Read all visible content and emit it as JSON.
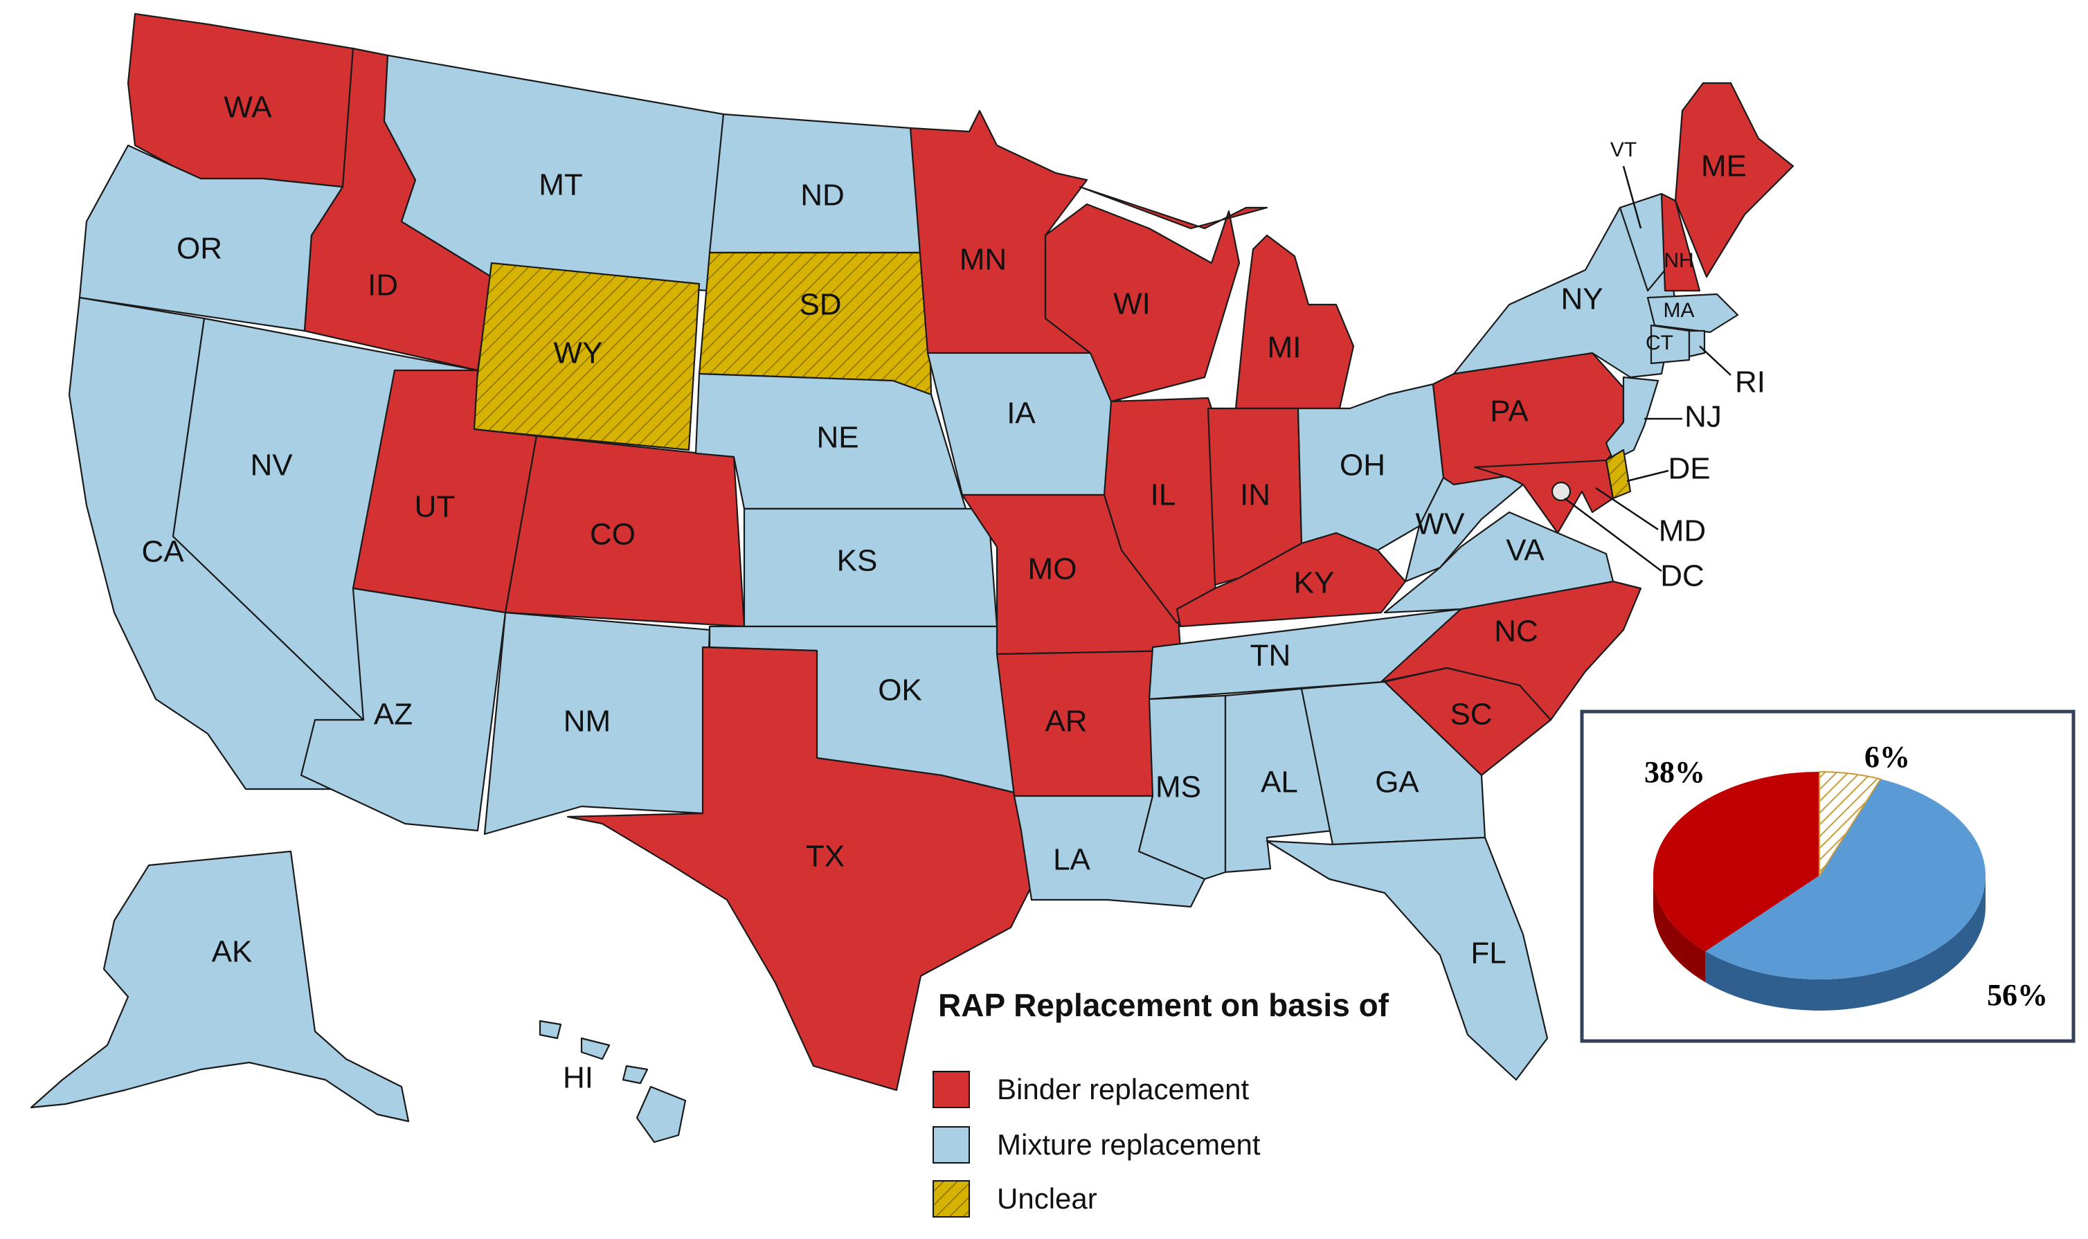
{
  "colors": {
    "binder": "#d43232",
    "mixture": "#a8cfe4",
    "unclear": "#d6b300",
    "pie_binder": "#c00000",
    "pie_mixture": "#5b9bd5",
    "pie_unclear": "#c99a3a"
  },
  "legend": {
    "title": "RAP Replacement on basis of",
    "items": [
      {
        "key": "binder",
        "label": "Binder replacement"
      },
      {
        "key": "mixture",
        "label": "Mixture replacement"
      },
      {
        "key": "unclear",
        "label": "Unclear"
      }
    ]
  },
  "states": [
    {
      "code": "WA",
      "label": "WA",
      "category": "binder"
    },
    {
      "code": "OR",
      "label": "OR",
      "category": "mixture"
    },
    {
      "code": "CA",
      "label": "CA",
      "category": "mixture"
    },
    {
      "code": "ID",
      "label": "ID",
      "category": "binder"
    },
    {
      "code": "NV",
      "label": "NV",
      "category": "mixture"
    },
    {
      "code": "MT",
      "label": "MT",
      "category": "mixture"
    },
    {
      "code": "WY",
      "label": "WY",
      "category": "unclear"
    },
    {
      "code": "UT",
      "label": "UT",
      "category": "binder"
    },
    {
      "code": "CO",
      "label": "CO",
      "category": "binder"
    },
    {
      "code": "AZ",
      "label": "AZ",
      "category": "mixture"
    },
    {
      "code": "NM",
      "label": "NM",
      "category": "mixture"
    },
    {
      "code": "ND",
      "label": "ND",
      "category": "mixture"
    },
    {
      "code": "SD",
      "label": "SD",
      "category": "unclear"
    },
    {
      "code": "NE",
      "label": "NE",
      "category": "mixture"
    },
    {
      "code": "KS",
      "label": "KS",
      "category": "mixture"
    },
    {
      "code": "OK",
      "label": "OK",
      "category": "mixture"
    },
    {
      "code": "TX",
      "label": "TX",
      "category": "binder"
    },
    {
      "code": "MN",
      "label": "MN",
      "category": "binder"
    },
    {
      "code": "IA",
      "label": "IA",
      "category": "mixture"
    },
    {
      "code": "MO",
      "label": "MO",
      "category": "binder"
    },
    {
      "code": "AR",
      "label": "AR",
      "category": "binder"
    },
    {
      "code": "LA",
      "label": "LA",
      "category": "mixture"
    },
    {
      "code": "WI",
      "label": "WI",
      "category": "binder"
    },
    {
      "code": "IL",
      "label": "IL",
      "category": "binder"
    },
    {
      "code": "MI",
      "label": "MI",
      "category": "binder"
    },
    {
      "code": "IN",
      "label": "IN",
      "category": "binder"
    },
    {
      "code": "OH",
      "label": "OH",
      "category": "mixture"
    },
    {
      "code": "KY",
      "label": "KY",
      "category": "binder"
    },
    {
      "code": "TN",
      "label": "TN",
      "category": "mixture"
    },
    {
      "code": "MS",
      "label": "MS",
      "category": "mixture"
    },
    {
      "code": "AL",
      "label": "AL",
      "category": "mixture"
    },
    {
      "code": "GA",
      "label": "GA",
      "category": "mixture"
    },
    {
      "code": "FL",
      "label": "FL",
      "category": "mixture"
    },
    {
      "code": "SC",
      "label": "SC",
      "category": "binder"
    },
    {
      "code": "NC",
      "label": "NC",
      "category": "binder"
    },
    {
      "code": "VA",
      "label": "VA",
      "category": "mixture"
    },
    {
      "code": "WV",
      "label": "WV",
      "category": "mixture"
    },
    {
      "code": "PA",
      "label": "PA",
      "category": "binder"
    },
    {
      "code": "NY",
      "label": "NY",
      "category": "mixture"
    },
    {
      "code": "VT",
      "label": "VT",
      "category": "mixture"
    },
    {
      "code": "NH",
      "label": "NH",
      "category": "binder"
    },
    {
      "code": "ME",
      "label": "ME",
      "category": "binder"
    },
    {
      "code": "MA",
      "label": "MA",
      "category": "mixture"
    },
    {
      "code": "CT",
      "label": "CT",
      "category": "mixture"
    },
    {
      "code": "RI",
      "label": "RI",
      "category": "mixture"
    },
    {
      "code": "NJ",
      "label": "NJ",
      "category": "mixture"
    },
    {
      "code": "DE",
      "label": "DE",
      "category": "unclear"
    },
    {
      "code": "MD",
      "label": "MD",
      "category": "binder"
    },
    {
      "code": "DC",
      "label": "DC",
      "category": "mixture"
    },
    {
      "code": "AK",
      "label": "AK",
      "category": "mixture"
    },
    {
      "code": "HI",
      "label": "HI",
      "category": "mixture"
    }
  ],
  "chart_data": {
    "type": "pie",
    "categories": [
      "Binder replacement",
      "Mixture replacement",
      "Unclear"
    ],
    "values": [
      38,
      56,
      6
    ],
    "labels": [
      "38%",
      "56%",
      "6%"
    ]
  }
}
